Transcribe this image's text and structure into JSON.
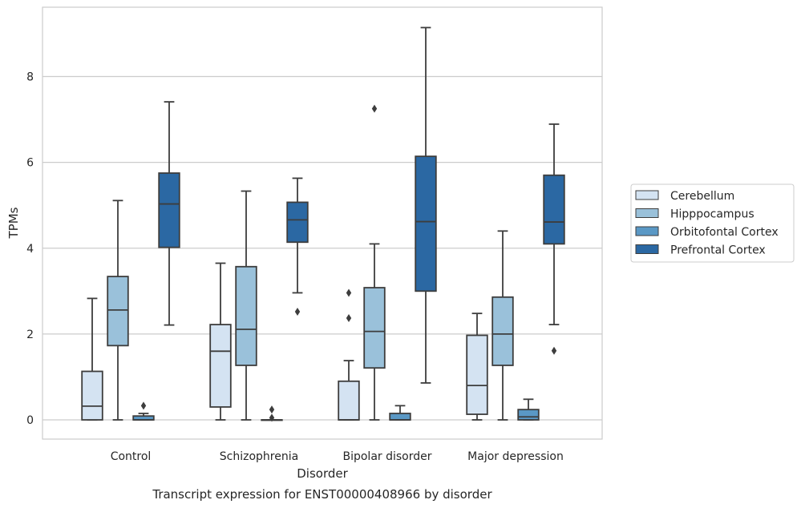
{
  "chart_data": {
    "type": "boxplot",
    "caption": "Transcript expression for ENST00000408966 by disorder",
    "xlabel": "Disorder",
    "ylabel": "TPMs",
    "ylim": [
      -0.45,
      9.6
    ],
    "yticks": [
      0,
      2,
      4,
      6,
      8
    ],
    "grid": "horizontal",
    "legend_position": "right",
    "categories": [
      "Control",
      "Schizophrenia",
      "Bipolar disorder",
      "Major depression"
    ],
    "series": [
      {
        "name": "Cerebellum",
        "color": "#d4e3f2",
        "boxes": [
          {
            "whislo": 0,
            "q1": 0,
            "med": 0.32,
            "q3": 1.13,
            "whishi": 2.83,
            "fliers": []
          },
          {
            "whislo": 0,
            "q1": 0.3,
            "med": 1.6,
            "q3": 2.22,
            "whishi": 3.65,
            "fliers": []
          },
          {
            "whislo": 0,
            "q1": 0,
            "med": 0,
            "q3": 0.9,
            "whishi": 1.38,
            "fliers": [
              2.37,
              2.96
            ]
          },
          {
            "whislo": 0,
            "q1": 0.13,
            "med": 0.8,
            "q3": 1.97,
            "whishi": 2.48,
            "fliers": []
          }
        ]
      },
      {
        "name": "Hipppocampus",
        "color": "#9ac1da",
        "boxes": [
          {
            "whislo": 0,
            "q1": 1.73,
            "med": 2.56,
            "q3": 3.34,
            "whishi": 5.11,
            "fliers": []
          },
          {
            "whislo": 0,
            "q1": 1.27,
            "med": 2.11,
            "q3": 3.57,
            "whishi": 5.33,
            "fliers": []
          },
          {
            "whislo": 0,
            "q1": 1.21,
            "med": 2.06,
            "q3": 3.08,
            "whishi": 4.1,
            "fliers": [
              7.25
            ]
          },
          {
            "whislo": 0,
            "q1": 1.27,
            "med": 2.0,
            "q3": 2.86,
            "whishi": 4.4,
            "fliers": []
          }
        ]
      },
      {
        "name": "Orbitofontal Cortex",
        "color": "#5a98c5",
        "boxes": [
          {
            "whislo": 0,
            "q1": 0,
            "med": 0,
            "q3": 0.09,
            "whishi": 0.15,
            "fliers": [
              0.33
            ]
          },
          {
            "whislo": 0,
            "q1": 0,
            "med": 0,
            "q3": 0,
            "whishi": 0,
            "fliers": [
              0.05,
              0.24
            ]
          },
          {
            "whislo": 0,
            "q1": 0,
            "med": 0,
            "q3": 0.15,
            "whishi": 0.33,
            "fliers": []
          },
          {
            "whislo": 0,
            "q1": 0,
            "med": 0.07,
            "q3": 0.24,
            "whishi": 0.48,
            "fliers": []
          }
        ]
      },
      {
        "name": "Prefrontal Cortex",
        "color": "#2b68a3",
        "boxes": [
          {
            "whislo": 2.21,
            "q1": 4.02,
            "med": 5.03,
            "q3": 5.75,
            "whishi": 7.41,
            "fliers": []
          },
          {
            "whislo": 2.96,
            "q1": 4.14,
            "med": 4.66,
            "q3": 5.07,
            "whishi": 5.63,
            "fliers": [
              2.52
            ]
          },
          {
            "whislo": 0.86,
            "q1": 3.0,
            "med": 4.62,
            "q3": 6.14,
            "whishi": 9.14,
            "fliers": []
          },
          {
            "whislo": 2.22,
            "q1": 4.1,
            "med": 4.61,
            "q3": 5.7,
            "whishi": 6.89,
            "fliers": [
              1.61
            ]
          }
        ]
      }
    ]
  }
}
